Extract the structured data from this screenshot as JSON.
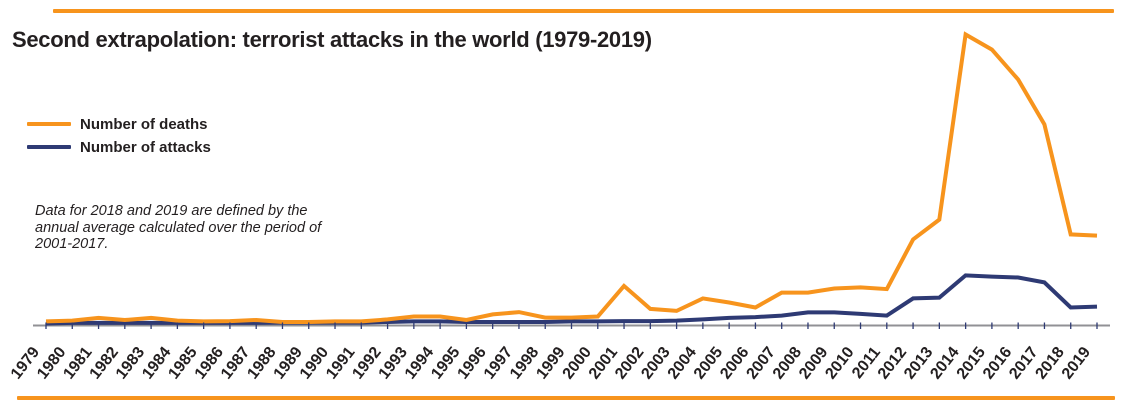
{
  "colors": {
    "accent": "#f7941d",
    "deaths": "#f7941d",
    "attacks": "#2e3a74",
    "text": "#231f20",
    "axis": "#919195"
  },
  "header": {
    "title": "Second extrapolation: terrorist attacks in the world (1979-2019)"
  },
  "legend": [
    {
      "label": "Number of deaths",
      "color": "#f7941d"
    },
    {
      "label": "Number of attacks",
      "color": "#2e3a74"
    }
  ],
  "note": {
    "lines": [
      "Data for 2018 and 2019 are defined by the",
      "annual average calculated over the period of",
      "2001-2017."
    ]
  },
  "chart_data": {
    "type": "line",
    "title": "Second extrapolation: terrorist attacks in the world (1979-2019)",
    "categories": [
      "1979",
      "1980",
      "1981",
      "1982",
      "1983",
      "1984",
      "1985",
      "1986",
      "1987",
      "1988",
      "1989",
      "1990",
      "1991",
      "1992",
      "1993",
      "1994",
      "1995",
      "1996",
      "1997",
      "1998",
      "1999",
      "2000",
      "2001",
      "2002",
      "2003",
      "2004",
      "2005",
      "2006",
      "2007",
      "2008",
      "2009",
      "2010",
      "2011",
      "2012",
      "2013",
      "2014",
      "2015",
      "2016",
      "2017",
      "2018",
      "2019"
    ],
    "series": [
      {
        "name": "Number of deaths",
        "color": "#f7941d",
        "values": [
          1.4,
          1.7,
          2.6,
          1.9,
          2.6,
          1.7,
          1.4,
          1.5,
          1.9,
          1.2,
          1.2,
          1.4,
          1.4,
          2.1,
          3.1,
          3.1,
          1.9,
          3.8,
          4.6,
          2.7,
          2.7,
          3.1,
          13.6,
          5.7,
          5.0,
          9.3,
          7.9,
          6.2,
          11.3,
          11.3,
          12.7,
          13.1,
          12.5,
          29.6,
          36.4,
          100,
          94.8,
          84.5,
          69.1,
          31.3,
          30.9
        ]
      },
      {
        "name": "Number of attacks",
        "color": "#2e3a74",
        "values": [
          0.7,
          0.9,
          0.9,
          0.9,
          0.9,
          0.9,
          0.9,
          0.9,
          0.9,
          1.0,
          1.0,
          1.0,
          1.0,
          1.2,
          1.4,
          1.4,
          1.2,
          1.2,
          1.2,
          1.2,
          1.4,
          1.4,
          1.5,
          1.5,
          1.7,
          2.1,
          2.6,
          2.9,
          3.4,
          4.5,
          4.5,
          4.0,
          3.4,
          9.3,
          9.6,
          17.2,
          16.8,
          16.5,
          14.8,
          6.2,
          6.5
        ]
      }
    ],
    "xlabel": "",
    "ylabel": "",
    "y_axis_note": "no y-axis ticks or labels shown; values are relative units where 100 = 2014 deaths peak",
    "ylim": [
      0,
      105
    ],
    "grid": false,
    "legend_position": "top-left",
    "annotation": "Data for 2018 and 2019 are defined by the annual average calculated over the period of 2001-2017.",
    "notable_points": {
      "deaths_spike_year": "2001",
      "deaths_peak_year": "2014",
      "attacks_peak_year": "2014"
    }
  }
}
